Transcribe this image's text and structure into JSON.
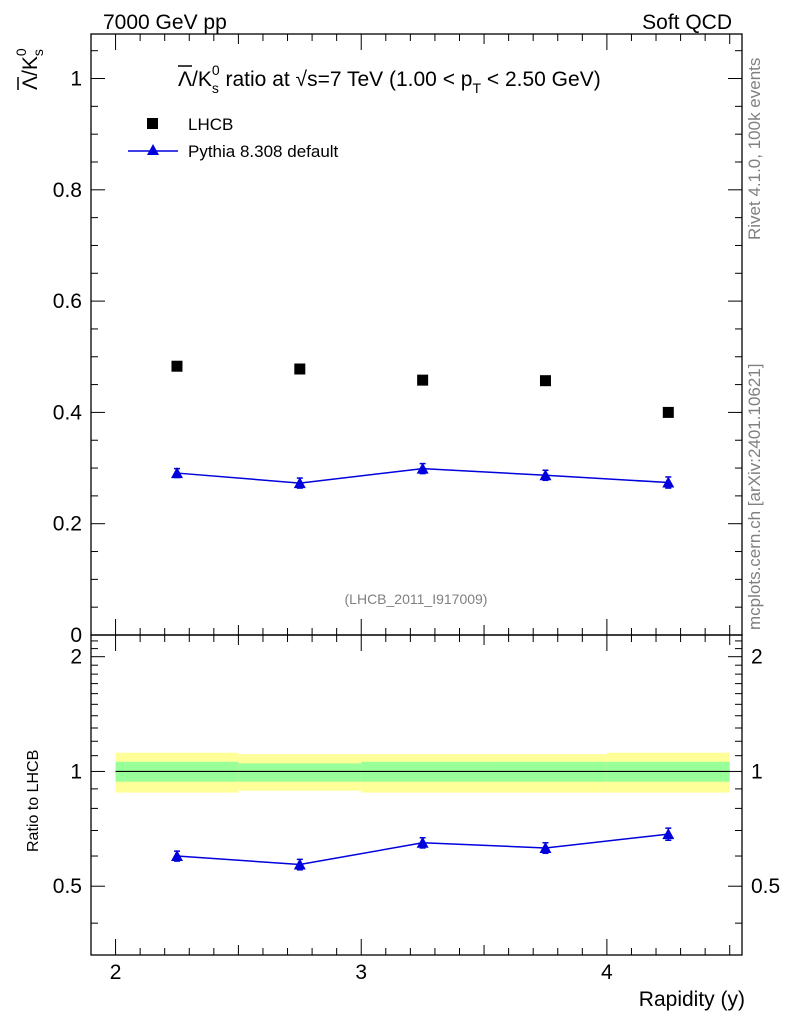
{
  "header": {
    "left": "7000 GeV pp",
    "right": "Soft QCD"
  },
  "side_labels": {
    "rivet": "Rivet 4.1.0,  100k events",
    "mcplots": "mcplots.cern.ch [arXiv:2401.10621]"
  },
  "chart_data": [
    {
      "type": "scatter",
      "title": {
        "prefix": "/K",
        "lambda": "Λ",
        "sub_s": "s",
        "sup_0": "0",
        "mid": " ratio at ",
        "sqrt": "√s",
        "energy": "=7 TeV (1.00 < p",
        "sub_T": "T",
        "suffix": " < 2.50 GeV)"
      },
      "ylabel": {
        "lambda": "Λ",
        "slash": "/K",
        "sub": "s",
        "sup": "0"
      },
      "analysis_tag": "(LHCB_2011_I917009)",
      "xlim": [
        1.9,
        4.55
      ],
      "ylim": [
        0,
        1.08
      ],
      "yticks": [
        0,
        0.2,
        0.4,
        0.6,
        0.8,
        1
      ],
      "ytick_labels": [
        "0",
        "0.2",
        "0.4",
        "0.6",
        "0.8",
        "1"
      ],
      "x": [
        2.25,
        2.75,
        3.25,
        3.75,
        4.25
      ],
      "bin_edges": [
        2.0,
        2.5,
        3.0,
        3.5,
        4.0,
        4.5
      ],
      "series": [
        {
          "name": "LHCB",
          "marker": "square",
          "color": "#000000",
          "values": [
            0.483,
            0.478,
            0.458,
            0.457,
            0.4
          ],
          "errors": [
            0.004,
            0.004,
            0.004,
            0.004,
            0.004
          ]
        },
        {
          "name": "Pythia 8.308 default",
          "marker": "triangle",
          "color": "#0000dd",
          "values": [
            0.291,
            0.273,
            0.299,
            0.287,
            0.274
          ],
          "errors": [
            0.008,
            0.009,
            0.009,
            0.009,
            0.01
          ]
        }
      ]
    },
    {
      "type": "line",
      "ylabel": "Ratio to LHCB",
      "xlabel": "Rapidity (y)",
      "xlim": [
        1.9,
        4.55
      ],
      "ylim": [
        0.33,
        2.28
      ],
      "yticks": [
        0.5,
        1,
        2
      ],
      "ytick_labels": [
        "0.5",
        "1",
        "2"
      ],
      "xticks": [
        2,
        3,
        4
      ],
      "xtick_labels": [
        "2",
        "3",
        "4"
      ],
      "x": [
        2.25,
        2.75,
        3.25,
        3.75,
        4.25
      ],
      "bin_edges": [
        2.0,
        2.5,
        3.0,
        3.5,
        4.0,
        4.5
      ],
      "green_band": [
        [
          0.94,
          1.06
        ],
        [
          0.94,
          1.05
        ],
        [
          0.94,
          1.06
        ],
        [
          0.94,
          1.06
        ],
        [
          0.94,
          1.06
        ]
      ],
      "yellow_band": [
        [
          0.88,
          1.12
        ],
        [
          0.89,
          1.11
        ],
        [
          0.88,
          1.11
        ],
        [
          0.88,
          1.11
        ],
        [
          0.88,
          1.12
        ]
      ],
      "reference": 1,
      "series": [
        {
          "name": "Pythia 8.308 default",
          "color": "#0000dd",
          "values": [
            0.6,
            0.57,
            0.65,
            0.63,
            0.685
          ],
          "errors": [
            0.018,
            0.018,
            0.02,
            0.02,
            0.025
          ]
        }
      ]
    }
  ]
}
